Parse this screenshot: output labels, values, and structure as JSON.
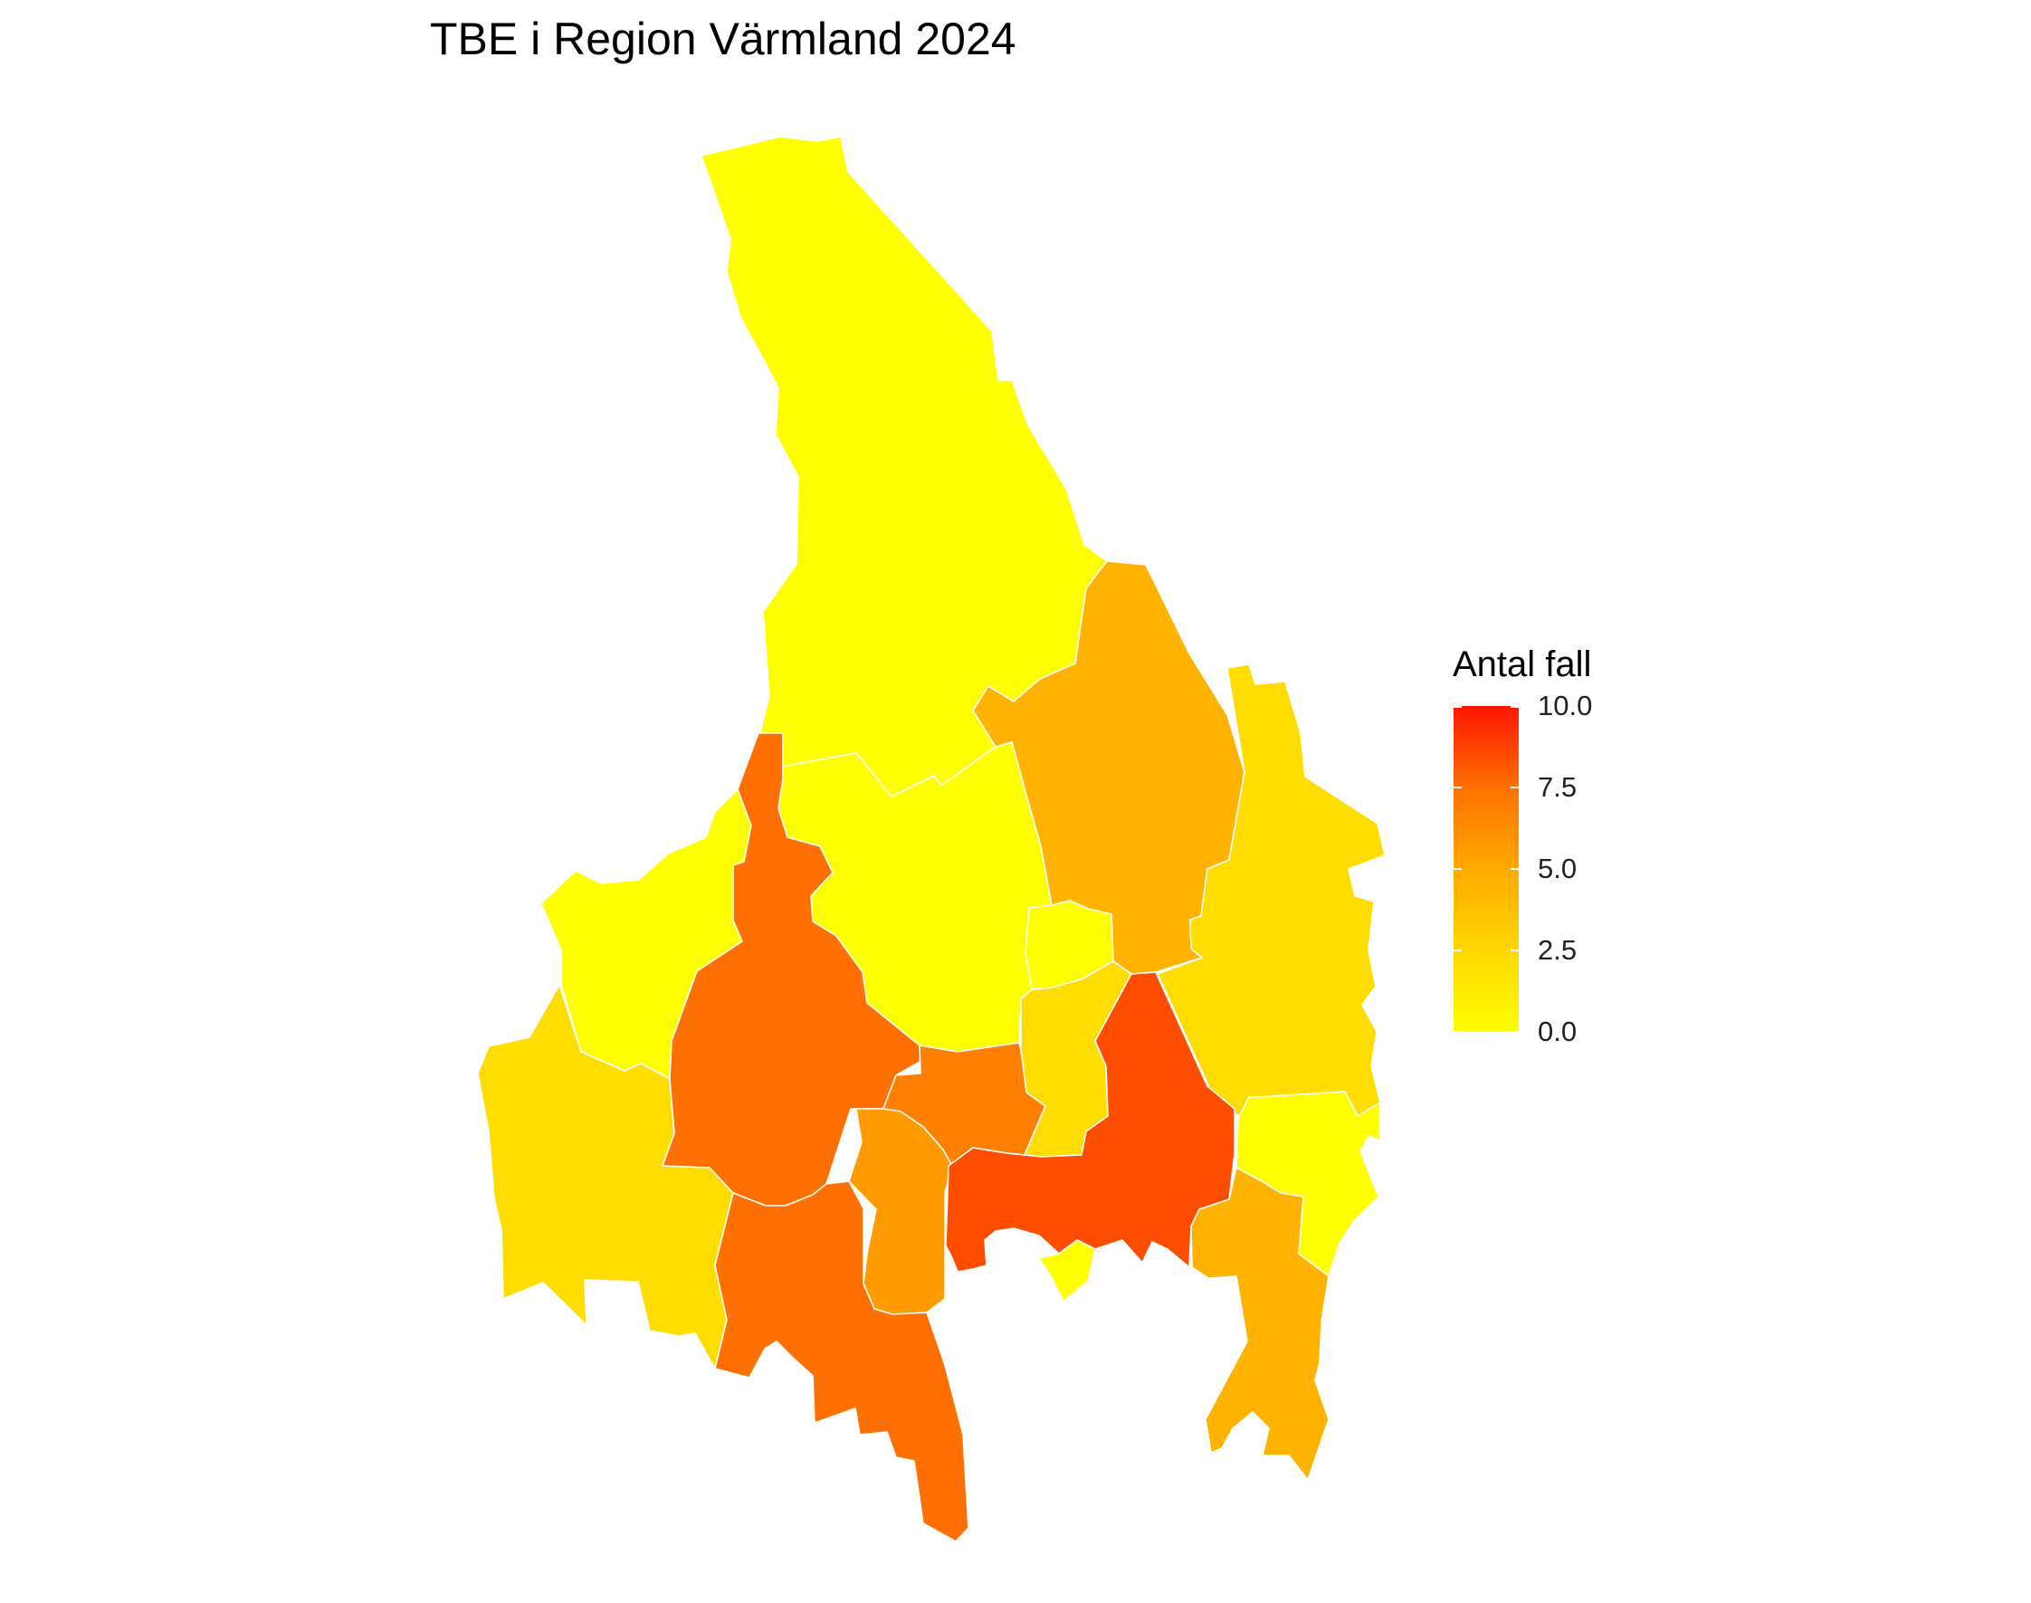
{
  "title": "TBE i Region Värmland 2024",
  "legend": {
    "title": "Antal fall",
    "min": 0,
    "max": 10,
    "ticks": [
      "0.0",
      "2.5",
      "5.0",
      "7.5",
      "10.0"
    ],
    "colors": {
      "low": "#ffff00",
      "mid": "#ffaa00",
      "high": "#ff1500"
    }
  },
  "regions": [
    {
      "id": "north",
      "cases": 0,
      "color": "#ffff00"
    },
    {
      "id": "northeast",
      "cases": 3,
      "color": "#ffb300"
    },
    {
      "id": "east",
      "cases": 2,
      "color": "#ffdd00"
    },
    {
      "id": "central-north",
      "cases": 0,
      "color": "#ffff00"
    },
    {
      "id": "west-upper",
      "cases": 0,
      "color": "#ffff00"
    },
    {
      "id": "west",
      "cases": 2,
      "color": "#ffdd00"
    },
    {
      "id": "west-central",
      "cases": 7,
      "color": "#ff7000"
    },
    {
      "id": "central-small",
      "cases": 0,
      "color": "#ffff00"
    },
    {
      "id": "central-south",
      "cases": 2,
      "color": "#ffdd00"
    },
    {
      "id": "central-mid",
      "cases": 6,
      "color": "#ff8000"
    },
    {
      "id": "south-central",
      "cases": 4,
      "color": "#ff9a00"
    },
    {
      "id": "south-west",
      "cases": 7,
      "color": "#ff7000"
    },
    {
      "id": "karlstad",
      "cases": 8,
      "color": "#ff4d00"
    },
    {
      "id": "south-small",
      "cases": 0,
      "color": "#ffff00"
    },
    {
      "id": "east-south",
      "cases": 0,
      "color": "#ffff00"
    },
    {
      "id": "southeast",
      "cases": 3,
      "color": "#ffb300"
    }
  ]
}
